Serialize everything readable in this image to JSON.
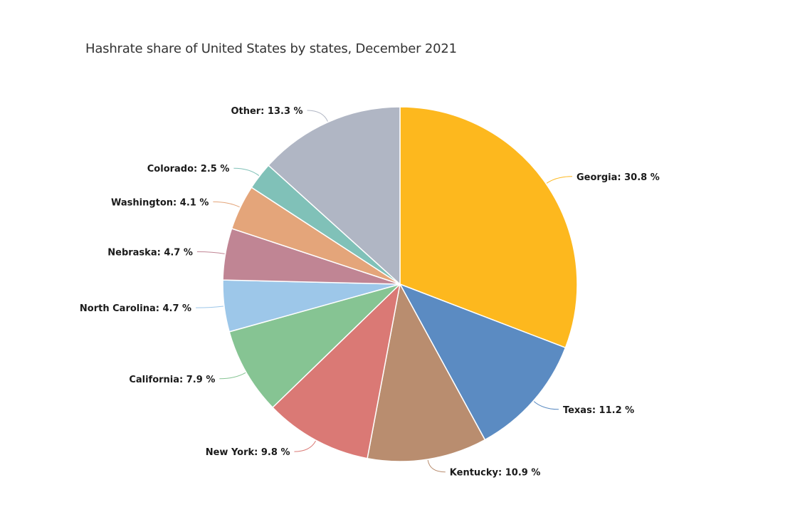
{
  "chart_data": {
    "type": "pie",
    "title": "Hashrate share of United States by states, December 2021",
    "value_suffix": " %",
    "slices": [
      {
        "label": "Georgia",
        "value": 30.8,
        "color": "#FDB81E"
      },
      {
        "label": "Texas",
        "value": 11.2,
        "color": "#5B8BC2"
      },
      {
        "label": "Kentucky",
        "value": 10.9,
        "color": "#B98D6F"
      },
      {
        "label": "New York",
        "value": 9.8,
        "color": "#DA7975"
      },
      {
        "label": "California",
        "value": 7.9,
        "color": "#86C493"
      },
      {
        "label": "North Carolina",
        "value": 4.7,
        "color": "#9DC7E9"
      },
      {
        "label": "Nebraska",
        "value": 4.7,
        "color": "#C08594"
      },
      {
        "label": "Washington",
        "value": 4.1,
        "color": "#E4A57A"
      },
      {
        "label": "Colorado",
        "value": 2.5,
        "color": "#80C1B8"
      },
      {
        "label": "Other",
        "value": 13.3,
        "color": "#B0B6C4"
      }
    ]
  }
}
